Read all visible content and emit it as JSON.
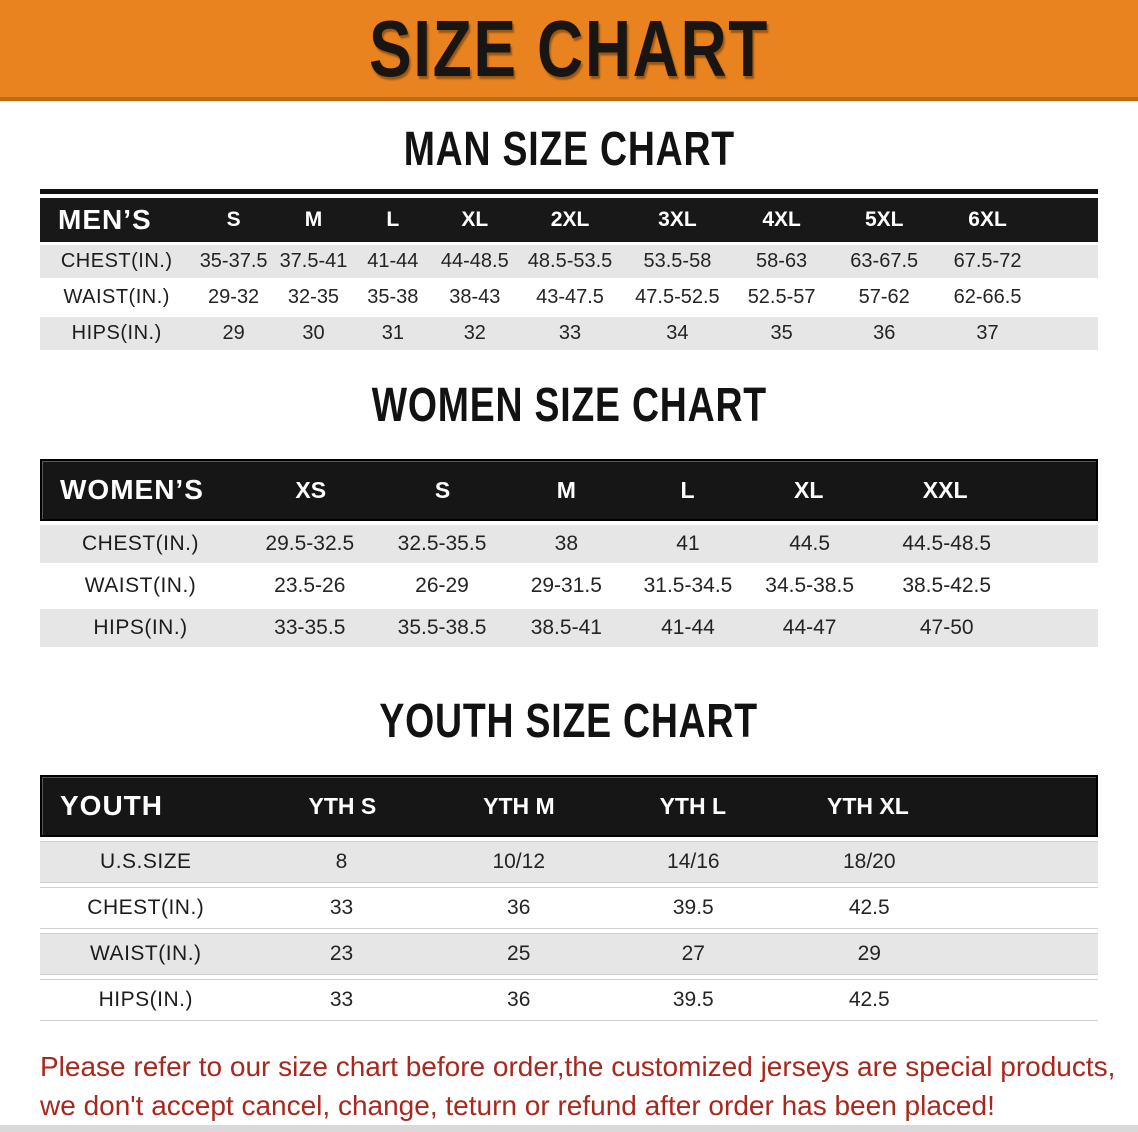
{
  "banner": {
    "title": "SIZE CHART"
  },
  "colors": {
    "banner_bg": "#E9831F",
    "header_bar": "#181818",
    "row_gray": "#E6E6E6",
    "note_red": "#A8281E"
  },
  "sections": [
    {
      "heading": "MAN SIZE CHART",
      "table": {
        "header": {
          "label": "MEN’S",
          "sizes": [
            "S",
            "M",
            "L",
            "XL",
            "2XL",
            "3XL",
            "4XL",
            "5XL",
            "6XL"
          ]
        },
        "rows": [
          {
            "label": "CHEST(IN.)",
            "values": [
              "35-37.5",
              "37.5-41",
              "41-44",
              "44-48.5",
              "48.5-53.5",
              "53.5-58",
              "58-63",
              "63-67.5",
              "67.5-72"
            ]
          },
          {
            "label": "WAIST(IN.)",
            "values": [
              "29-32",
              "32-35",
              "35-38",
              "38-43",
              "43-47.5",
              "47.5-52.5",
              "52.5-57",
              "57-62",
              "62-66.5"
            ]
          },
          {
            "label": "HIPS(IN.)",
            "values": [
              "29",
              "30",
              "31",
              "32",
              "33",
              "34",
              "35",
              "36",
              "37"
            ]
          }
        ]
      }
    },
    {
      "heading": "WOMEN SIZE CHART",
      "table": {
        "header": {
          "label": "WOMEN’S",
          "sizes": [
            "XS",
            "S",
            "M",
            "L",
            "XL",
            "XXL"
          ]
        },
        "rows": [
          {
            "label": "CHEST(IN.)",
            "values": [
              "29.5-32.5",
              "32.5-35.5",
              "38",
              "41",
              "44.5",
              "44.5-48.5"
            ]
          },
          {
            "label": "WAIST(IN.)",
            "values": [
              "23.5-26",
              "26-29",
              "29-31.5",
              "31.5-34.5",
              "34.5-38.5",
              "38.5-42.5"
            ]
          },
          {
            "label": "HIPS(IN.)",
            "values": [
              "33-35.5",
              "35.5-38.5",
              "38.5-41",
              "41-44",
              "44-47",
              "47-50"
            ]
          }
        ]
      }
    },
    {
      "heading": "YOUTH SIZE CHART",
      "table": {
        "header": {
          "label": "YOUTH",
          "sizes": [
            "YTH S",
            "YTH M",
            "YTH L",
            "YTH XL"
          ]
        },
        "rows": [
          {
            "label": "U.S.SIZE",
            "values": [
              "8",
              "10/12",
              "14/16",
              "18/20"
            ]
          },
          {
            "label": "CHEST(IN.)",
            "values": [
              "33",
              "36",
              "39.5",
              "42.5"
            ]
          },
          {
            "label": "WAIST(IN.)",
            "values": [
              "23",
              "25",
              "27",
              "29"
            ]
          },
          {
            "label": "HIPS(IN.)",
            "values": [
              "33",
              "36",
              "39.5",
              "42.5"
            ]
          }
        ]
      }
    }
  ],
  "note": {
    "line1": "Please refer to our size chart before order,the customized jerseys are special products,",
    "line2": "we don't accept cancel, change, teturn or refund after order has been placed!"
  }
}
